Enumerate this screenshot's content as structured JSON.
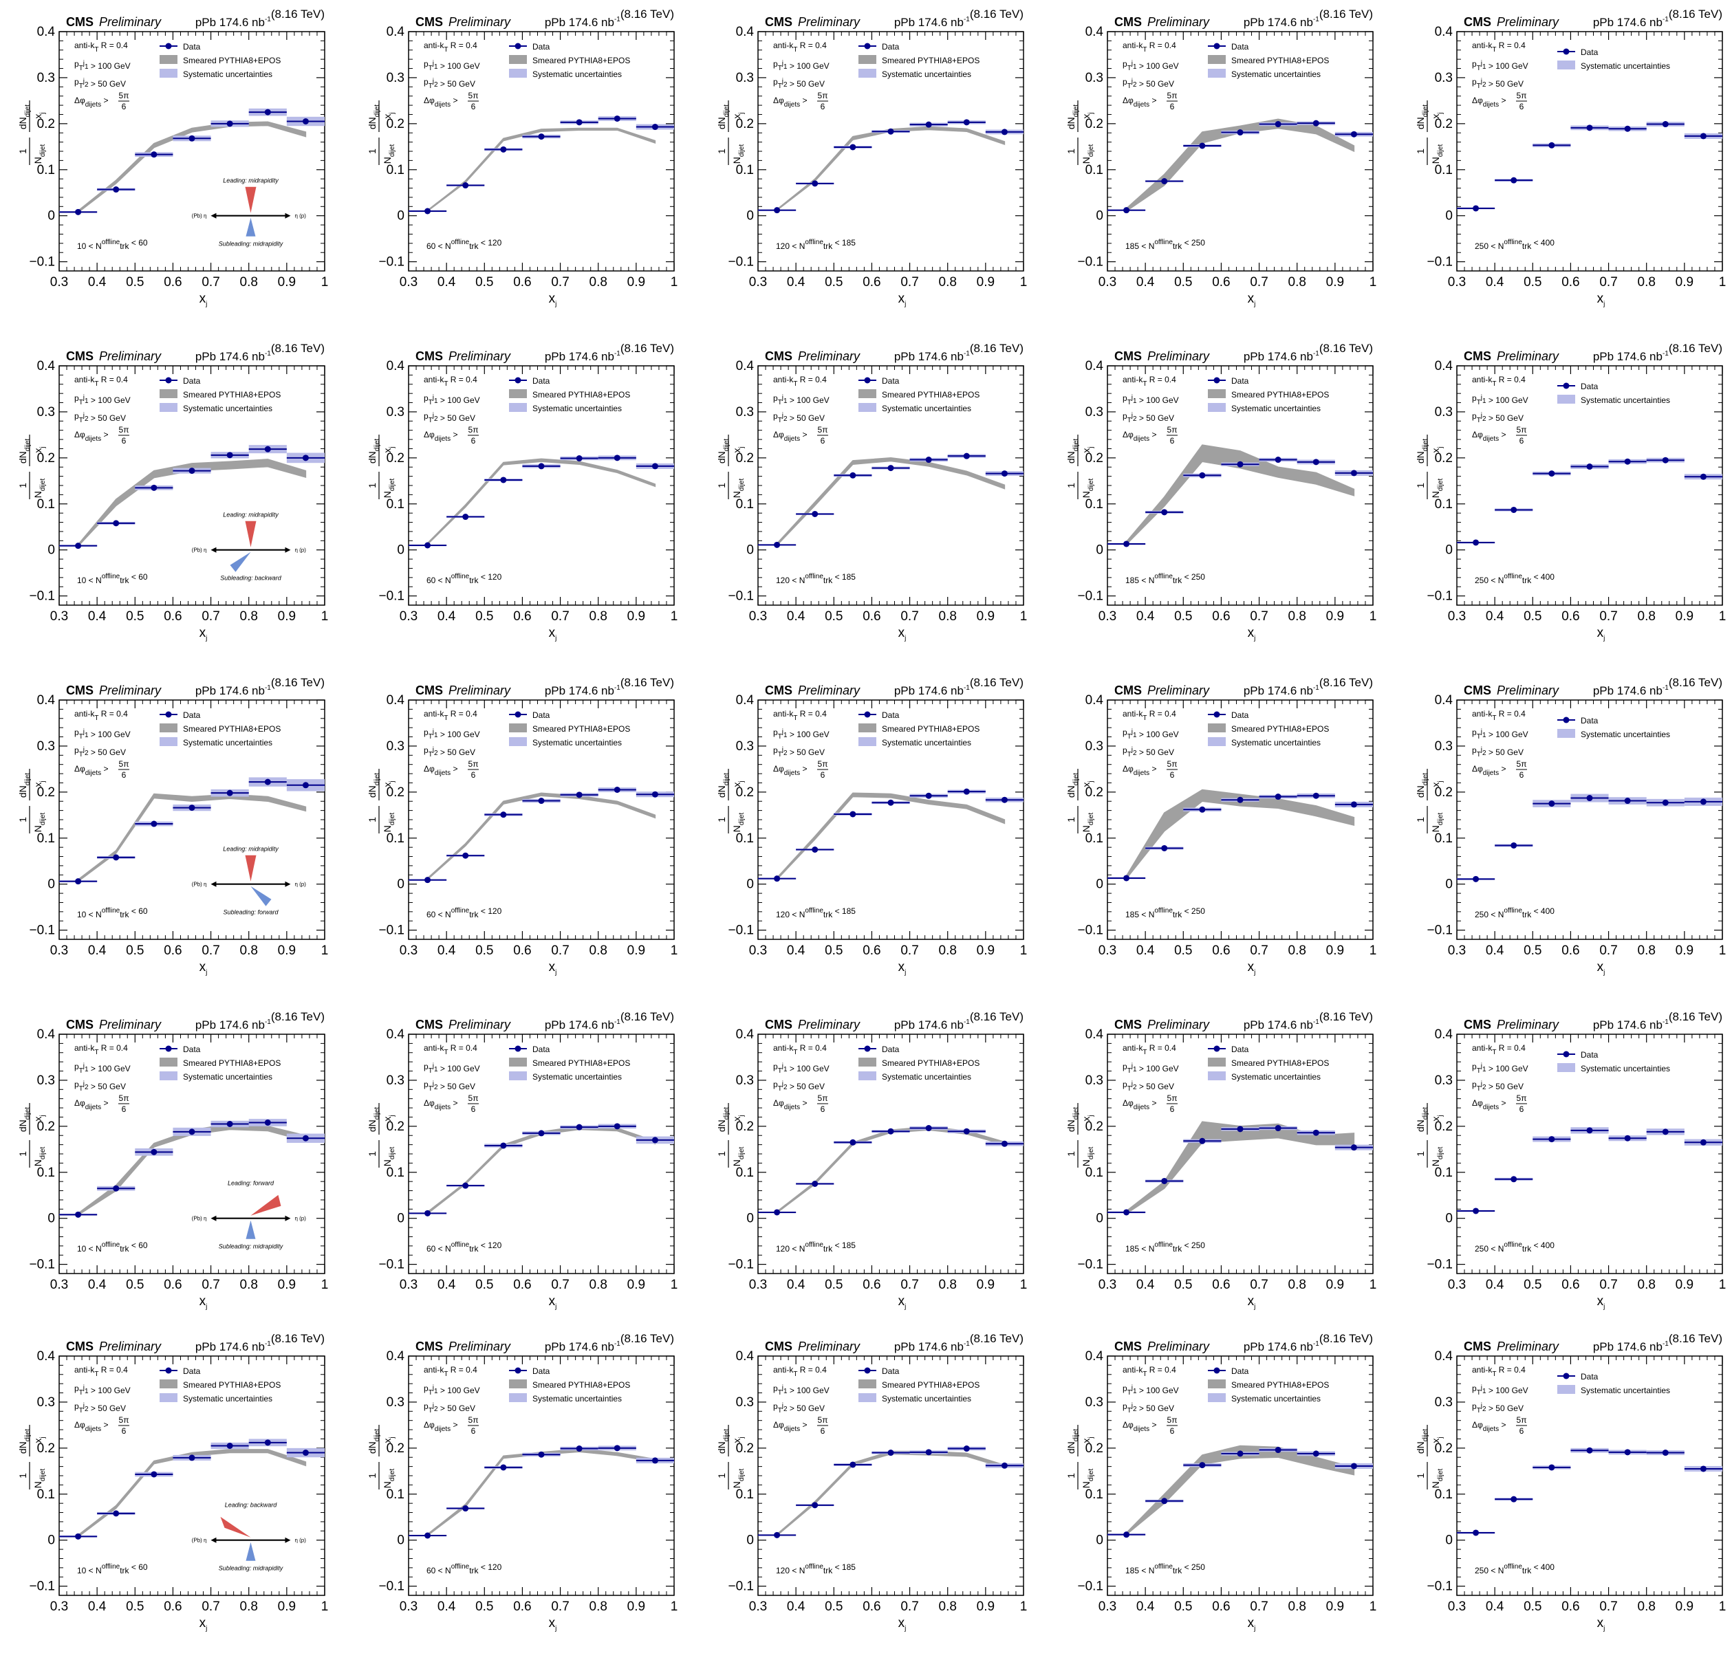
{
  "header": {
    "experiment": "CMS",
    "status": "Preliminary",
    "lumi_main": "pPb 174.6 nb",
    "lumi_sup": "-1",
    "energy": "(8.16 TeV)"
  },
  "selection": {
    "algo": "anti-k",
    "algo_sub": "T",
    "algo_tail": " R = 0.4",
    "pt1": "> 100 GeV",
    "pt2": "> 50 GeV",
    "p": "p",
    "pt_sub": "T",
    "j1": "j",
    "j1_sub": "1",
    "j2": "j",
    "j2_sub": "2",
    "dphi": "Δφ",
    "dphi_sub": "dijets",
    "dphi_gt": ">",
    "frac_num": "5π",
    "frac_den": "6"
  },
  "legend": {
    "data": "Data",
    "mc": "Smeared PYTHIA8+EPOS",
    "syst": "Systematic uncertainties"
  },
  "axes": {
    "xlabel": "x",
    "xlabel_sub": "j",
    "ylabel_num": "dN",
    "ylabel_num_sub": "dijet",
    "ylabel_den_x": "x",
    "ylabel_den_sub": "j",
    "ylabel_frac_num": "1",
    "ylabel_frac_den": "N",
    "ylabel_frac_den_sub": "dijet",
    "xticks": [
      "0.3",
      "0.4",
      "0.5",
      "0.6",
      "0.7",
      "0.8",
      "0.9",
      "1"
    ],
    "yticks": [
      "−0.1",
      "0",
      "0.1",
      "0.2",
      "0.3",
      "0.4"
    ]
  },
  "multiplicity": {
    "var": "N",
    "var_sup": "offline",
    "var_sub": "trk",
    "bins": [
      {
        "lo": "10 <",
        "hi": "< 60"
      },
      {
        "lo": "60 <",
        "hi": "< 120"
      },
      {
        "lo": "120 <",
        "hi": "< 185"
      },
      {
        "lo": "185 <",
        "hi": "< 250"
      },
      {
        "lo": "250 <",
        "hi": "< 400"
      }
    ]
  },
  "schematic": {
    "left": "(Pb)",
    "right": "(p)",
    "eta": "η",
    "rows": [
      {
        "leading": "Leading: midrapidity",
        "subleading": "Subleading: midrapidity"
      },
      {
        "leading": "Leading: midrapidity",
        "subleading": "Subleading: backward"
      },
      {
        "leading": "Leading: midrapidity",
        "subleading": "Subleading: forward"
      },
      {
        "leading": "Leading: forward",
        "subleading": "Subleading: midrapidity"
      },
      {
        "leading": "Leading: backward",
        "subleading": "Subleading: midrapidity"
      }
    ]
  },
  "colors": {
    "data": "#00008b",
    "mc_band": "#a0a0a0",
    "syst": "#b8bbe8",
    "leading_cone": "#d9534f",
    "subleading_cone": "#6c8fd4"
  },
  "chart_data": {
    "type": "scatter",
    "layout": "5 rows (jet rapidity configurations) x 5 columns (multiplicity bins)",
    "xlim": [
      0.3,
      1.0
    ],
    "ylim": [
      -0.12,
      0.4
    ],
    "x_bin_centers": [
      0.35,
      0.45,
      0.55,
      0.65,
      0.75,
      0.85,
      0.95
    ],
    "x_bin_halfwidth": 0.05,
    "mc_x": [
      0.35,
      0.45,
      0.55,
      0.65,
      0.75,
      0.85,
      0.95
    ],
    "panels": [
      [
        {
          "data": [
            0.008,
            0.057,
            0.133,
            0.168,
            0.2,
            0.225,
            0.205
          ],
          "syst": [
            0.002,
            0.003,
            0.005,
            0.006,
            0.007,
            0.008,
            0.01
          ],
          "mc_lo": [
            0.007,
            0.07,
            0.148,
            0.182,
            0.194,
            0.196,
            0.172
          ],
          "mc_hi": [
            0.011,
            0.077,
            0.157,
            0.19,
            0.202,
            0.204,
            0.182
          ]
        },
        {
          "data": [
            0.01,
            0.066,
            0.144,
            0.172,
            0.203,
            0.211,
            0.193
          ],
          "syst": [
            0.001,
            0.002,
            0.003,
            0.004,
            0.004,
            0.005,
            0.006
          ],
          "mc_lo": [
            0.01,
            0.072,
            0.163,
            0.183,
            0.186,
            0.186,
            0.158
          ],
          "mc_hi": [
            0.012,
            0.076,
            0.168,
            0.188,
            0.19,
            0.19,
            0.163
          ]
        },
        {
          "data": [
            0.012,
            0.07,
            0.149,
            0.183,
            0.198,
            0.203,
            0.182
          ],
          "syst": [
            0.001,
            0.002,
            0.003,
            0.003,
            0.004,
            0.004,
            0.005
          ],
          "mc_lo": [
            0.012,
            0.075,
            0.165,
            0.183,
            0.187,
            0.183,
            0.155
          ],
          "mc_hi": [
            0.014,
            0.08,
            0.172,
            0.188,
            0.193,
            0.189,
            0.161
          ]
        },
        {
          "data": [
            0.012,
            0.075,
            0.152,
            0.181,
            0.199,
            0.201,
            0.177
          ],
          "syst": [
            0.001,
            0.002,
            0.003,
            0.004,
            0.004,
            0.004,
            0.005
          ],
          "mc_lo": [
            0.01,
            0.066,
            0.158,
            0.18,
            0.19,
            0.178,
            0.14
          ],
          "mc_hi": [
            0.016,
            0.09,
            0.182,
            0.195,
            0.21,
            0.195,
            0.152
          ]
        },
        {
          "data": [
            0.016,
            0.077,
            0.153,
            0.191,
            0.189,
            0.199,
            0.173
          ],
          "syst": [
            0.002,
            0.003,
            0.004,
            0.005,
            0.005,
            0.005,
            0.006
          ],
          "mc_lo": null,
          "mc_hi": null
        }
      ],
      [
        {
          "data": [
            0.009,
            0.058,
            0.135,
            0.172,
            0.206,
            0.219,
            0.2
          ],
          "syst": [
            0.002,
            0.003,
            0.005,
            0.006,
            0.007,
            0.009,
            0.011
          ],
          "mc_lo": [
            0.008,
            0.096,
            0.157,
            0.172,
            0.176,
            0.181,
            0.158
          ],
          "mc_hi": [
            0.012,
            0.11,
            0.172,
            0.188,
            0.192,
            0.197,
            0.172
          ]
        },
        {
          "data": [
            0.01,
            0.072,
            0.152,
            0.182,
            0.199,
            0.2,
            0.182
          ],
          "syst": [
            0.001,
            0.002,
            0.003,
            0.004,
            0.004,
            0.005,
            0.006
          ],
          "mc_lo": [
            0.012,
            0.093,
            0.185,
            0.192,
            0.186,
            0.168,
            0.138
          ],
          "mc_hi": [
            0.015,
            0.098,
            0.19,
            0.198,
            0.192,
            0.173,
            0.143
          ]
        },
        {
          "data": [
            0.011,
            0.078,
            0.162,
            0.178,
            0.196,
            0.204,
            0.166
          ],
          "syst": [
            0.001,
            0.002,
            0.003,
            0.003,
            0.004,
            0.004,
            0.005
          ],
          "mc_lo": [
            0.01,
            0.096,
            0.186,
            0.193,
            0.182,
            0.163,
            0.133
          ],
          "mc_hi": [
            0.014,
            0.104,
            0.194,
            0.2,
            0.19,
            0.171,
            0.141
          ]
        },
        {
          "data": [
            0.013,
            0.082,
            0.162,
            0.186,
            0.196,
            0.191,
            0.167
          ],
          "syst": [
            0.002,
            0.003,
            0.004,
            0.004,
            0.004,
            0.005,
            0.006
          ],
          "mc_lo": [
            0.012,
            0.095,
            0.192,
            0.178,
            0.158,
            0.143,
            0.118
          ],
          "mc_hi": [
            0.018,
            0.115,
            0.228,
            0.215,
            0.18,
            0.168,
            0.132
          ]
        },
        {
          "data": [
            0.016,
            0.087,
            0.166,
            0.181,
            0.192,
            0.195,
            0.159
          ],
          "syst": [
            0.002,
            0.003,
            0.004,
            0.005,
            0.005,
            0.005,
            0.006
          ],
          "mc_lo": null,
          "mc_hi": null
        }
      ],
      [
        {
          "data": [
            0.006,
            0.058,
            0.131,
            0.166,
            0.198,
            0.222,
            0.215
          ],
          "syst": [
            0.002,
            0.003,
            0.005,
            0.007,
            0.008,
            0.01,
            0.013
          ],
          "mc_lo": [
            0.006,
            0.067,
            0.187,
            0.18,
            0.186,
            0.18,
            0.159
          ],
          "mc_hi": [
            0.01,
            0.073,
            0.196,
            0.19,
            0.195,
            0.19,
            0.168
          ]
        },
        {
          "data": [
            0.009,
            0.062,
            0.151,
            0.181,
            0.194,
            0.205,
            0.195
          ],
          "syst": [
            0.001,
            0.002,
            0.003,
            0.004,
            0.004,
            0.005,
            0.006
          ],
          "mc_lo": [
            0.01,
            0.083,
            0.174,
            0.192,
            0.186,
            0.174,
            0.144
          ],
          "mc_hi": [
            0.013,
            0.088,
            0.18,
            0.198,
            0.192,
            0.18,
            0.15
          ]
        },
        {
          "data": [
            0.012,
            0.075,
            0.152,
            0.177,
            0.192,
            0.201,
            0.183
          ],
          "syst": [
            0.001,
            0.002,
            0.003,
            0.003,
            0.004,
            0.004,
            0.005
          ],
          "mc_lo": [
            0.01,
            0.097,
            0.19,
            0.188,
            0.174,
            0.164,
            0.132
          ],
          "mc_hi": [
            0.014,
            0.104,
            0.198,
            0.196,
            0.182,
            0.172,
            0.14
          ]
        },
        {
          "data": [
            0.013,
            0.078,
            0.162,
            0.183,
            0.19,
            0.192,
            0.173
          ],
          "syst": [
            0.002,
            0.003,
            0.004,
            0.004,
            0.004,
            0.005,
            0.006
          ],
          "mc_lo": [
            0.012,
            0.115,
            0.18,
            0.17,
            0.165,
            0.148,
            0.128
          ],
          "mc_hi": [
            0.018,
            0.155,
            0.205,
            0.195,
            0.185,
            0.17,
            0.145
          ]
        },
        {
          "data": [
            0.011,
            0.084,
            0.175,
            0.187,
            0.181,
            0.177,
            0.179
          ],
          "syst": [
            0.002,
            0.003,
            0.008,
            0.009,
            0.008,
            0.008,
            0.009
          ],
          "mc_lo": null,
          "mc_hi": null
        }
      ],
      [
        {
          "data": [
            0.008,
            0.065,
            0.144,
            0.188,
            0.205,
            0.208,
            0.174
          ],
          "syst": [
            0.002,
            0.005,
            0.008,
            0.009,
            0.007,
            0.008,
            0.01
          ],
          "mc_lo": [
            0.007,
            0.06,
            0.155,
            0.182,
            0.193,
            0.19,
            0.168
          ],
          "mc_hi": [
            0.011,
            0.072,
            0.163,
            0.192,
            0.205,
            0.2,
            0.18
          ]
        },
        {
          "data": [
            0.011,
            0.071,
            0.158,
            0.185,
            0.198,
            0.2,
            0.17
          ],
          "syst": [
            0.001,
            0.002,
            0.004,
            0.004,
            0.004,
            0.005,
            0.008
          ],
          "mc_lo": [
            0.01,
            0.074,
            0.155,
            0.182,
            0.193,
            0.19,
            0.162
          ],
          "mc_hi": [
            0.014,
            0.078,
            0.16,
            0.188,
            0.2,
            0.196,
            0.168
          ]
        },
        {
          "data": [
            0.013,
            0.075,
            0.165,
            0.189,
            0.196,
            0.189,
            0.162
          ],
          "syst": [
            0.001,
            0.002,
            0.003,
            0.003,
            0.004,
            0.004,
            0.005
          ],
          "mc_lo": [
            0.012,
            0.074,
            0.16,
            0.186,
            0.192,
            0.183,
            0.16
          ],
          "mc_hi": [
            0.015,
            0.079,
            0.165,
            0.192,
            0.199,
            0.19,
            0.166
          ]
        },
        {
          "data": [
            0.013,
            0.081,
            0.168,
            0.194,
            0.196,
            0.186,
            0.154
          ],
          "syst": [
            0.002,
            0.003,
            0.004,
            0.004,
            0.004,
            0.005,
            0.006
          ],
          "mc_lo": [
            0.01,
            0.065,
            0.165,
            0.17,
            0.175,
            0.16,
            0.16
          ],
          "mc_hi": [
            0.016,
            0.08,
            0.21,
            0.2,
            0.205,
            0.18,
            0.185
          ]
        },
        {
          "data": [
            0.016,
            0.085,
            0.172,
            0.191,
            0.174,
            0.188,
            0.165
          ],
          "syst": [
            0.002,
            0.003,
            0.006,
            0.007,
            0.006,
            0.007,
            0.007
          ],
          "mc_lo": null,
          "mc_hi": null
        }
      ],
      [
        {
          "data": [
            0.008,
            0.058,
            0.143,
            0.179,
            0.205,
            0.212,
            0.19
          ],
          "syst": [
            0.002,
            0.003,
            0.005,
            0.006,
            0.007,
            0.008,
            0.01
          ],
          "mc_lo": [
            0.007,
            0.069,
            0.166,
            0.183,
            0.19,
            0.19,
            0.162
          ],
          "mc_hi": [
            0.011,
            0.075,
            0.172,
            0.19,
            0.197,
            0.197,
            0.17
          ]
        },
        {
          "data": [
            0.01,
            0.069,
            0.158,
            0.186,
            0.199,
            0.2,
            0.173
          ],
          "syst": [
            0.001,
            0.002,
            0.003,
            0.004,
            0.004,
            0.005,
            0.006
          ],
          "mc_lo": [
            0.01,
            0.072,
            0.178,
            0.186,
            0.192,
            0.184,
            0.17
          ],
          "mc_hi": [
            0.013,
            0.078,
            0.183,
            0.191,
            0.198,
            0.19,
            0.176
          ]
        },
        {
          "data": [
            0.011,
            0.076,
            0.164,
            0.19,
            0.191,
            0.199,
            0.162
          ],
          "syst": [
            0.001,
            0.002,
            0.003,
            0.003,
            0.004,
            0.004,
            0.005
          ],
          "mc_lo": [
            0.01,
            0.079,
            0.163,
            0.187,
            0.185,
            0.182,
            0.157
          ],
          "mc_hi": [
            0.013,
            0.084,
            0.168,
            0.193,
            0.193,
            0.189,
            0.163
          ]
        },
        {
          "data": [
            0.012,
            0.085,
            0.163,
            0.188,
            0.196,
            0.188,
            0.161
          ],
          "syst": [
            0.002,
            0.003,
            0.004,
            0.004,
            0.004,
            0.005,
            0.006
          ],
          "mc_lo": [
            0.012,
            0.08,
            0.165,
            0.178,
            0.18,
            0.16,
            0.142
          ],
          "mc_hi": [
            0.016,
            0.1,
            0.185,
            0.205,
            0.202,
            0.18,
            0.158
          ]
        },
        {
          "data": [
            0.016,
            0.089,
            0.158,
            0.195,
            0.191,
            0.19,
            0.155
          ],
          "syst": [
            0.002,
            0.003,
            0.004,
            0.005,
            0.005,
            0.005,
            0.006
          ],
          "mc_lo": null,
          "mc_hi": null
        }
      ]
    ]
  }
}
